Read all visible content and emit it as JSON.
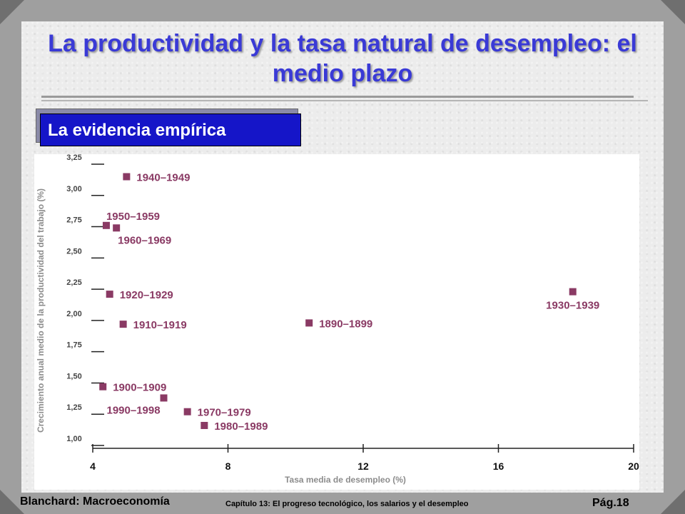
{
  "slide": {
    "title": "La productividad y la tasa natural de desempleo: el medio plazo",
    "subtitle": "La evidencia empírica",
    "footer_left": "Blanchard: Macroeconomía",
    "footer_mid": "Capítulo 13: El progreso tecnológico, los salarios y el desempleo",
    "footer_right": "Pág.18"
  },
  "chart_data": {
    "type": "scatter",
    "xlabel": "Tasa media de desempleo (%)",
    "ylabel": "Crecimiento anual medio de la productividad del trabajo (%)",
    "xlim": [
      4,
      20
    ],
    "ylim": [
      1.0,
      3.25
    ],
    "x_ticks": [
      4,
      8,
      12,
      16,
      20
    ],
    "y_ticks": [
      1.0,
      1.25,
      1.5,
      1.75,
      2.0,
      2.25,
      2.5,
      2.75,
      3.0,
      3.25
    ],
    "y_tick_labels": [
      "1,00",
      "1,25",
      "1,50",
      "1,75",
      "2,00",
      "2,25",
      "2,50",
      "2,75",
      "3,00",
      "3,25"
    ],
    "marker_color": "#8a3a64",
    "label_color": "#8a3a64",
    "points": [
      {
        "label": "1940–1949",
        "x": 5.0,
        "y": 3.15,
        "anchor": "right"
      },
      {
        "label": "1950–1959",
        "x": 4.4,
        "y": 2.76,
        "anchor": "above-right"
      },
      {
        "label": "1960–1969",
        "x": 4.7,
        "y": 2.74,
        "anchor": "below-right"
      },
      {
        "label": "1920–1929",
        "x": 4.5,
        "y": 2.21,
        "anchor": "right"
      },
      {
        "label": "1910–1919",
        "x": 4.9,
        "y": 1.97,
        "anchor": "right"
      },
      {
        "label": "1890–1899",
        "x": 10.4,
        "y": 1.98,
        "anchor": "right"
      },
      {
        "label": "1930–1939",
        "x": 18.2,
        "y": 2.23,
        "anchor": "below"
      },
      {
        "label": "1900–1909",
        "x": 4.3,
        "y": 1.47,
        "anchor": "right"
      },
      {
        "label": "1990–1998",
        "x": 6.1,
        "y": 1.38,
        "anchor": "below-left"
      },
      {
        "label": "1970–1979",
        "x": 6.8,
        "y": 1.27,
        "anchor": "right"
      },
      {
        "label": "1980–1989",
        "x": 7.3,
        "y": 1.16,
        "anchor": "right"
      }
    ]
  }
}
